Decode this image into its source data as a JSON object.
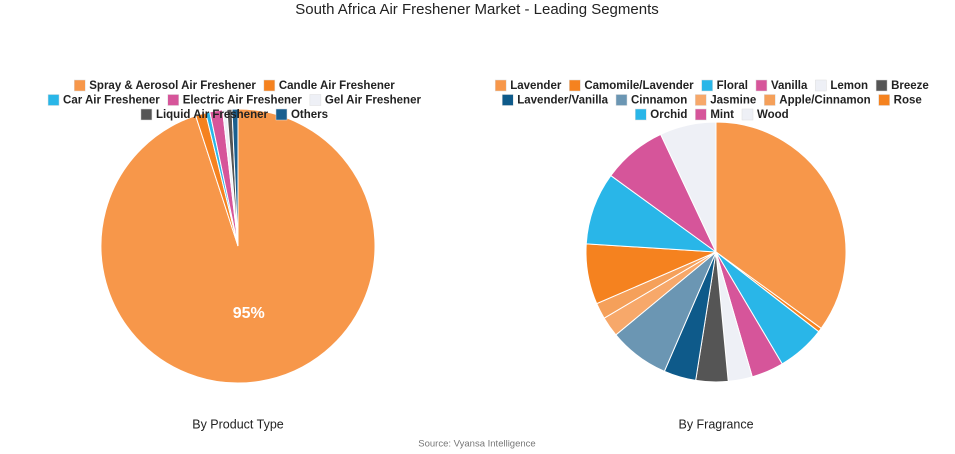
{
  "title": "South Africa Air Freshener Market - Leading Segments",
  "source": "Source: Vyansa Intelligence",
  "chart_data": [
    {
      "type": "pie",
      "title": "By Product Type",
      "categories": [
        "Spray & Aerosol Air Freshener",
        "Candle Air Freshener",
        "Car Air Freshener",
        "Electric Air Freshener",
        "Gel Air Freshener",
        "Liquid Air Freshener",
        "Others"
      ],
      "values": [
        95,
        1.2,
        0.5,
        1.5,
        0.5,
        0.6,
        0.7
      ],
      "value_labels": [
        "95%",
        null,
        null,
        null,
        null,
        null,
        null
      ],
      "colors": [
        "#f7974a",
        "#f5821f",
        "#29b6e8",
        "#d6559a",
        "#eef0f6",
        "#555555",
        "#1a5f8f"
      ]
    },
    {
      "type": "pie",
      "title": "By Fragrance",
      "categories": [
        "Lavender",
        "Camomile/Lavender",
        "Floral",
        "Vanilla",
        "Lemon",
        "Breeze",
        "Lavender/Vanilla",
        "Cinnamon",
        "Jasmine",
        "Apple/Cinnamon",
        "Rose",
        "Orchid",
        "Mint",
        "Wood"
      ],
      "values": [
        35,
        0.5,
        6,
        4,
        3,
        4,
        4,
        7.5,
        2.5,
        2,
        7.5,
        9,
        8,
        7
      ],
      "colors": [
        "#f7974a",
        "#f5821f",
        "#29b6e8",
        "#d6559a",
        "#eef0f6",
        "#555555",
        "#0e5a8a",
        "#6b96b3",
        "#f7a86a",
        "#f5a05a",
        "#f5821f",
        "#29b6e8",
        "#d6559a",
        "#eef0f6"
      ]
    }
  ]
}
